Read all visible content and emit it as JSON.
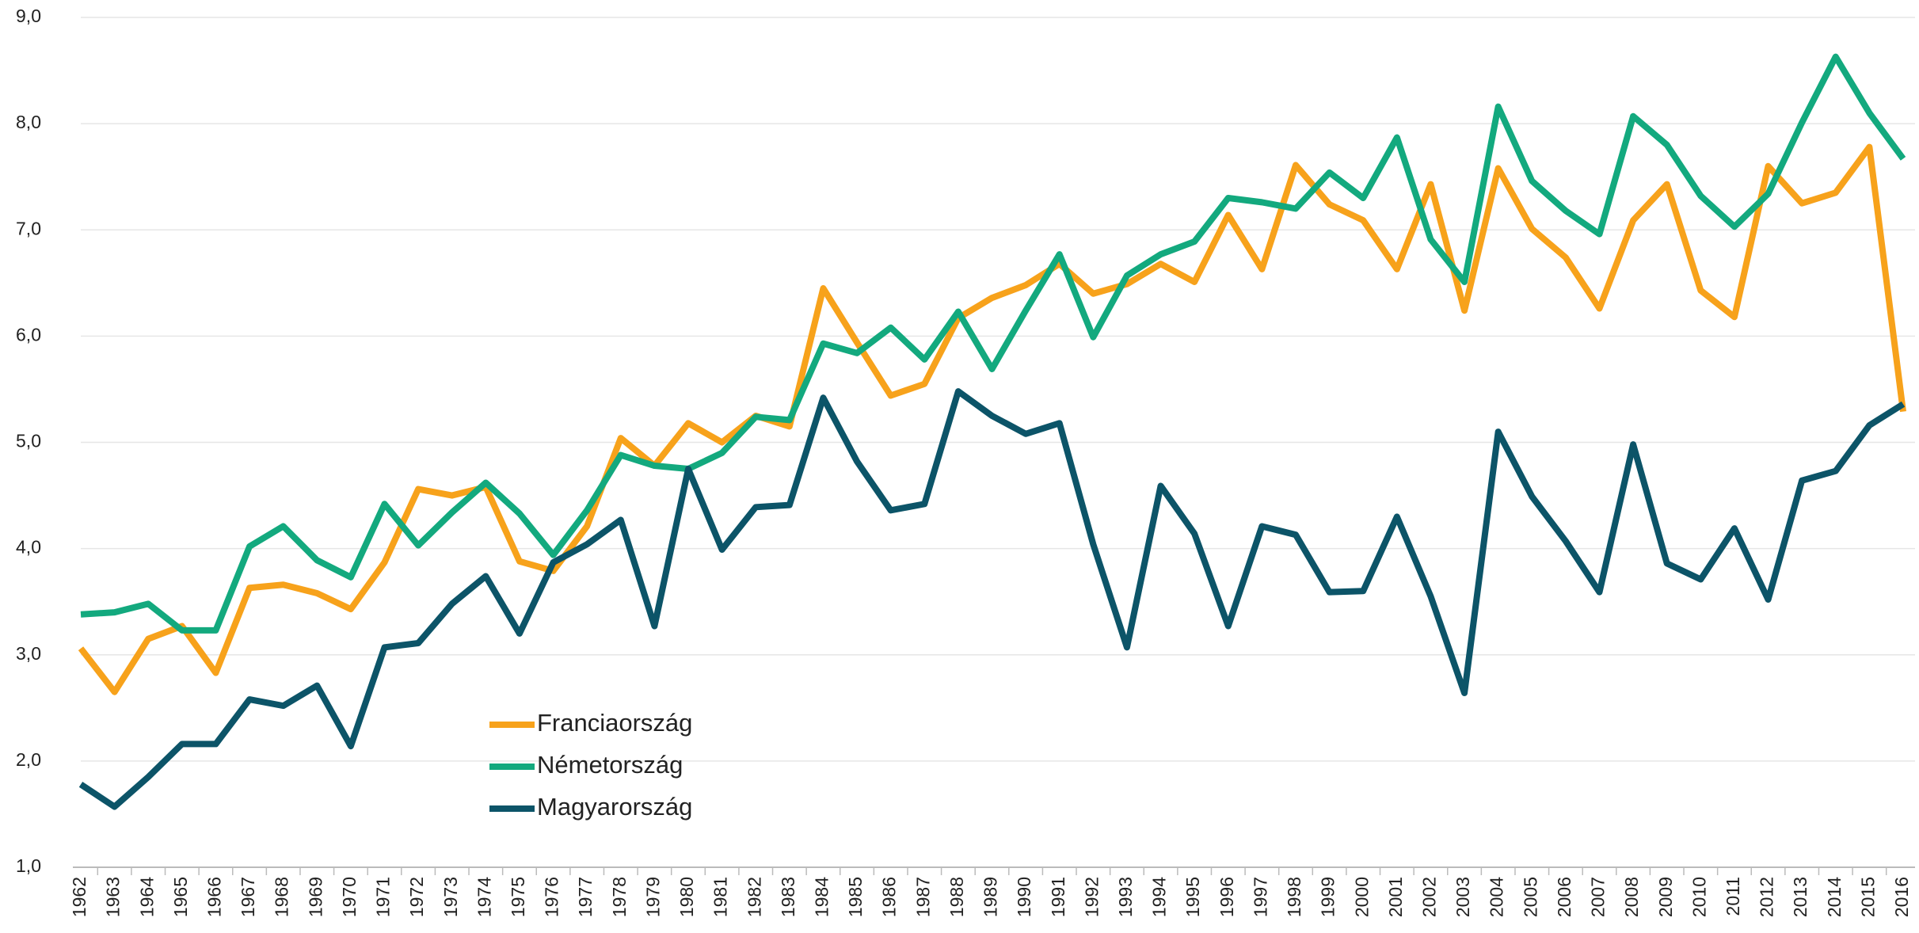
{
  "chart_data": {
    "type": "line",
    "categories": [
      "1962",
      "1963",
      "1964",
      "1965",
      "1966",
      "1967",
      "1968",
      "1969",
      "1970",
      "1971",
      "1972",
      "1973",
      "1974",
      "1975",
      "1976",
      "1977",
      "1978",
      "1979",
      "1980",
      "1981",
      "1982",
      "1983",
      "1984",
      "1985",
      "1986",
      "1987",
      "1988",
      "1989",
      "1990",
      "1991",
      "1992",
      "1993",
      "1994",
      "1995",
      "1996",
      "1997",
      "1998",
      "1999",
      "2000",
      "2001",
      "2002",
      "2003",
      "2004",
      "2005",
      "2006",
      "2007",
      "2008",
      "2009",
      "2010",
      "2011",
      "2012",
      "2013",
      "2014",
      "2015",
      "2016"
    ],
    "series": [
      {
        "name": "Franciaország",
        "color": "#f7a21b",
        "values": [
          3.06,
          2.65,
          3.15,
          3.27,
          2.83,
          3.63,
          3.66,
          3.58,
          3.43,
          3.87,
          4.56,
          4.5,
          4.58,
          3.88,
          3.79,
          4.21,
          5.04,
          4.78,
          5.18,
          5.0,
          5.25,
          5.15,
          6.45,
          5.94,
          5.44,
          5.55,
          6.17,
          6.36,
          6.48,
          6.68,
          6.4,
          6.49,
          6.68,
          6.51,
          7.14,
          6.63,
          7.61,
          7.24,
          7.09,
          6.63,
          7.43,
          6.24,
          7.58,
          7.01,
          6.74,
          6.26,
          7.09,
          7.43,
          6.43,
          6.18,
          7.6,
          7.25,
          7.35,
          7.78,
          5.29
        ]
      },
      {
        "name": "Németország",
        "color": "#13a97e",
        "values": [
          3.38,
          3.4,
          3.48,
          3.23,
          3.23,
          4.02,
          4.21,
          3.89,
          3.73,
          4.42,
          4.03,
          4.34,
          4.62,
          4.33,
          3.94,
          4.36,
          4.88,
          4.78,
          4.75,
          4.9,
          5.24,
          5.21,
          5.93,
          5.84,
          6.08,
          5.78,
          6.23,
          5.69,
          6.24,
          6.77,
          5.99,
          6.57,
          6.77,
          6.89,
          7.3,
          7.26,
          7.2,
          7.54,
          7.3,
          7.87,
          6.91,
          6.51,
          8.16,
          7.46,
          7.18,
          6.96,
          8.07,
          7.8,
          7.32,
          7.03,
          7.34,
          8.01,
          8.63,
          8.1,
          7.67
        ]
      },
      {
        "name": "Magyarország",
        "color": "#0c5468",
        "values": [
          1.78,
          1.57,
          1.85,
          2.16,
          2.16,
          2.58,
          2.52,
          2.71,
          2.14,
          3.07,
          3.11,
          3.48,
          3.74,
          3.2,
          3.87,
          4.04,
          4.27,
          3.27,
          4.75,
          3.99,
          4.39,
          4.41,
          5.42,
          4.82,
          4.36,
          4.42,
          5.48,
          5.25,
          5.08,
          5.18,
          4.04,
          3.07,
          4.59,
          4.14,
          3.27,
          4.21,
          4.13,
          3.59,
          3.6,
          4.3,
          3.55,
          2.64,
          5.1,
          4.49,
          4.07,
          3.59,
          4.98,
          3.86,
          3.71,
          4.19,
          3.52,
          4.64,
          4.73,
          5.16,
          5.36
        ]
      }
    ],
    "ylim": [
      1,
      9
    ],
    "yticks": [
      {
        "value": 1,
        "label": "1,0"
      },
      {
        "value": 2,
        "label": "2,0"
      },
      {
        "value": 3,
        "label": "3,0"
      },
      {
        "value": 4,
        "label": "4,0"
      },
      {
        "value": 5,
        "label": "5,0"
      },
      {
        "value": 6,
        "label": "6,0"
      },
      {
        "value": 7,
        "label": "7,0"
      },
      {
        "value": 8,
        "label": "8,0"
      },
      {
        "value": 9,
        "label": "9,0"
      }
    ],
    "grid": true,
    "legend": "lower-left"
  }
}
